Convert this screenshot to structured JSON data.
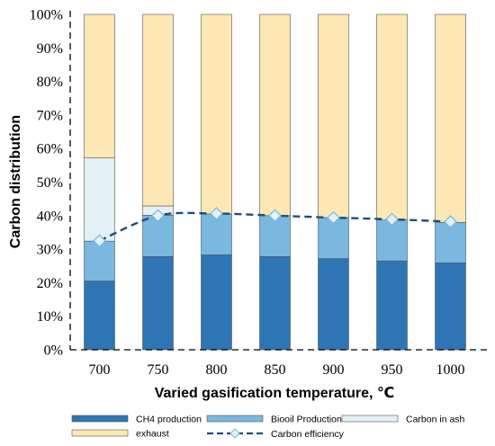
{
  "chart_data": {
    "type": "bar",
    "stacked": true,
    "categories": [
      "700",
      "750",
      "800",
      "850",
      "900",
      "950",
      "1000"
    ],
    "series": [
      {
        "name": "CH4 production",
        "values": [
          20.5,
          27.8,
          28.3,
          27.8,
          27.2,
          26.5,
          25.9
        ],
        "color": "#2e75b6"
      },
      {
        "name": "Biooil Production",
        "values": [
          11.9,
          12.3,
          12.2,
          12.2,
          12.2,
          12.2,
          12.1
        ],
        "color": "#7ab8e0"
      },
      {
        "name": "Carbon in ash",
        "values": [
          24.8,
          2.8,
          0.0,
          0.0,
          0.0,
          0.0,
          0.0
        ],
        "color": "#e3f0f4"
      },
      {
        "name": "exhaust",
        "values": [
          42.8,
          57.1,
          59.5,
          60.0,
          60.6,
          61.3,
          62.0
        ],
        "color": "#fde7b4"
      }
    ],
    "line_series": {
      "name": "Carbon efficiency",
      "values": [
        32.5,
        40.0,
        40.6,
        40.0,
        39.4,
        38.9,
        38.2
      ],
      "color": "#1f4e79",
      "marker_fill": "#e3f0f4",
      "style": "dashed"
    },
    "xlabel": "Varied gasification temperature, ℃",
    "ylabel": "Carbon distribution",
    "ylim": [
      0,
      100
    ],
    "yticks": [
      "0%",
      "10%",
      "20%",
      "30%",
      "40%",
      "50%",
      "60%",
      "70%",
      "80%",
      "90%",
      "100%"
    ],
    "grid": false,
    "legend_position": "bottom"
  }
}
